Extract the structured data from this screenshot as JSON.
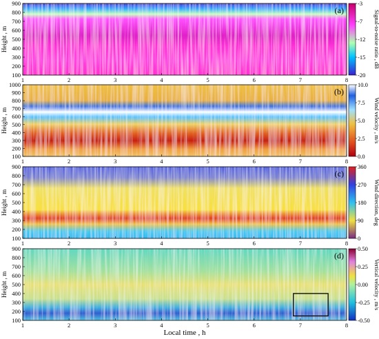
{
  "figure": {
    "xlabel": "Local time , h",
    "ylabel_all": "Height , m",
    "y_ticks": [
      100,
      200,
      300,
      400,
      500,
      600,
      700,
      800,
      900
    ],
    "x_ticks": [
      1,
      2,
      3,
      4,
      5,
      6,
      7,
      8
    ],
    "inset_box": {
      "x_range": [
        6.85,
        7.6
      ],
      "y_range": [
        150,
        400
      ],
      "panel": "d"
    }
  },
  "chart_data": [
    {
      "type": "heatmap",
      "panel_label": "(a)",
      "ylabel": "Height , m",
      "xlabel": "",
      "colorbar_label": "Signal-to-noise ratio , dB",
      "x_range": [
        1,
        8
      ],
      "ylim": [
        100,
        900
      ],
      "colorbar_range": [
        -20,
        -3
      ],
      "colorbar_ticks": [
        -3,
        -7,
        -12,
        -15,
        -20
      ],
      "colormap": [
        "#3b1fd0",
        "#00c0ff",
        "#b0ffb0",
        "#ff40ff",
        "#c8006a"
      ]
    },
    {
      "type": "heatmap",
      "panel_label": "(b)",
      "ylabel": "Height , m",
      "xlabel": "",
      "colorbar_label": "Wind velocity , m/s",
      "x_range": [
        1,
        8
      ],
      "ylim": [
        100,
        1000
      ],
      "y_ticks": [
        100,
        200,
        300,
        400,
        500,
        600,
        700,
        800,
        900,
        1000
      ],
      "colorbar_range": [
        0,
        10
      ],
      "colorbar_ticks": [
        "10.0",
        "7.5",
        "5.0",
        "2.5",
        "0.0"
      ],
      "colormap": [
        "#b00010",
        "#e05020",
        "#f0c040",
        "#a0e0ff",
        "#2060e0",
        "#ffffff"
      ]
    },
    {
      "type": "heatmap",
      "panel_label": "(c)",
      "ylabel": "Height , m",
      "xlabel": "",
      "colorbar_label": "Wind direction, deg",
      "x_range": [
        1,
        8
      ],
      "ylim": [
        100,
        900
      ],
      "colorbar_range": [
        0,
        360
      ],
      "colorbar_ticks": [
        360,
        270,
        180,
        90,
        0
      ],
      "colormap": [
        "#7a2a80",
        "#f0e040",
        "#30c0f0",
        "#3040e0",
        "#e02020"
      ]
    },
    {
      "type": "heatmap",
      "panel_label": "(d)",
      "ylabel": "Height , m",
      "xlabel": "Local time , h",
      "colorbar_label": "Vertical velocity , m/s",
      "x_range": [
        1,
        8
      ],
      "ylim": [
        100,
        900
      ],
      "colorbar_range": [
        -0.5,
        0.5
      ],
      "colorbar_ticks": [
        "0.50",
        "0.25",
        "0.00",
        "-0.25",
        "-0.50"
      ],
      "colormap": [
        "#1030c0",
        "#20c0e0",
        "#b0f0a0",
        "#f0e040",
        "#e080e0",
        "#8a0030"
      ]
    }
  ]
}
